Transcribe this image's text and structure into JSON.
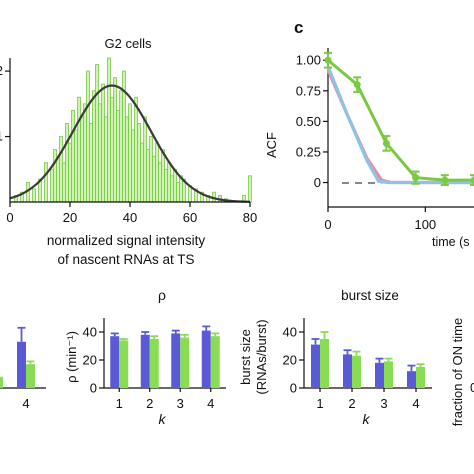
{
  "colors": {
    "green_fill": "#a8e87a",
    "green_line": "#7ac943",
    "green_bar": "#88dd55",
    "blue_bar": "#5a5ad6",
    "pink_curve": "#e98aa6",
    "blue_curve": "#8ec3e6",
    "axis": "#111111",
    "fit_curve": "#3a3a3a"
  },
  "chart_data": [
    {
      "id": "histogram",
      "type": "bar",
      "title": "G2 cells",
      "xlabel": [
        "normalized signal intensity",
        "of nascent RNAs at TS"
      ],
      "xticks": [
        "0",
        "20",
        "40",
        "60",
        "80"
      ],
      "xlim": [
        0,
        80
      ],
      "ylim": [
        0,
        2.2
      ],
      "yticks": [
        "1",
        "2"
      ],
      "bins_x": [
        2,
        4,
        6,
        8,
        10,
        12,
        14,
        15,
        16,
        17,
        18,
        19,
        20,
        21,
        22,
        23,
        24,
        25,
        26,
        27,
        28,
        29,
        30,
        31,
        32,
        33,
        34,
        35,
        36,
        37,
        38,
        39,
        40,
        41,
        42,
        43,
        44,
        45,
        46,
        47,
        48,
        49,
        50,
        51,
        52,
        53,
        54,
        55,
        56,
        57,
        58,
        60,
        62,
        64,
        66,
        68,
        70,
        72,
        78,
        80
      ],
      "bins_y": [
        0.1,
        0.15,
        0.3,
        0.2,
        0.35,
        0.6,
        0.5,
        0.8,
        0.7,
        1.0,
        0.6,
        1.2,
        0.9,
        1.4,
        1.1,
        1.6,
        1.3,
        1.5,
        2.0,
        1.2,
        1.7,
        2.1,
        1.5,
        1.8,
        1.3,
        2.2,
        1.6,
        1.9,
        1.4,
        1.7,
        2.0,
        1.3,
        1.5,
        1.1,
        1.6,
        1.2,
        0.9,
        1.3,
        0.8,
        1.0,
        0.7,
        0.9,
        0.6,
        0.8,
        0.5,
        0.6,
        0.4,
        0.5,
        0.3,
        0.4,
        0.35,
        0.25,
        0.2,
        0.15,
        0.1,
        0.15,
        0.1,
        0.05,
        0.1,
        0.4
      ],
      "fit": {
        "mean": 34,
        "sd": 13,
        "peak": 1.78
      }
    },
    {
      "id": "acf",
      "type": "line",
      "panel_label": "c",
      "ylabel": "ACF",
      "xlabel": "time (s",
      "xticks": [
        "0",
        "100"
      ],
      "yticks": [
        "1.00",
        "0.75",
        "0.50",
        "0.25",
        "0"
      ],
      "xlim": [
        0,
        195
      ],
      "ylim": [
        -0.2,
        1.1
      ],
      "series": [
        {
          "color": "green",
          "x": [
            0,
            30,
            60,
            90,
            120,
            150,
            180
          ],
          "y": [
            1.0,
            0.8,
            0.32,
            0.04,
            0.02,
            0.02,
            0.03
          ],
          "err": [
            0.06,
            0.06,
            0.06,
            0.05,
            0.04,
            0.04,
            0.05
          ]
        },
        {
          "color": "pink",
          "x": [
            0,
            20,
            40,
            55,
            65,
            75,
            195
          ],
          "y": [
            0.92,
            0.55,
            0.2,
            0.02,
            0.0,
            0.0,
            0.0
          ]
        },
        {
          "color": "blue",
          "x": [
            0,
            20,
            40,
            52,
            62,
            72,
            195
          ],
          "y": [
            0.95,
            0.55,
            0.18,
            0.01,
            0.0,
            0.0,
            0.0
          ]
        }
      ]
    },
    {
      "id": "partial-left",
      "type": "bar",
      "categories": [
        "",
        "",
        "",
        "4"
      ],
      "series": [
        {
          "color": "blue",
          "values": [
            null,
            null,
            null,
            33
          ],
          "err": [
            null,
            null,
            null,
            10
          ]
        },
        {
          "color": "green",
          "values": [
            null,
            null,
            null,
            17
          ],
          "err": [
            null,
            null,
            null,
            2
          ]
        }
      ],
      "ylim": [
        0,
        50
      ]
    },
    {
      "id": "rho",
      "type": "bar",
      "title": "ρ",
      "ylabel": "ρ (min⁻¹)",
      "xlabel": "k",
      "categories": [
        "1",
        "2",
        "3",
        "4"
      ],
      "yticks": [
        "40",
        "20",
        "0"
      ],
      "ylim": [
        0,
        50
      ],
      "series": [
        {
          "color": "blue",
          "values": [
            37,
            38,
            39,
            41
          ],
          "err": [
            2,
            2,
            2,
            3
          ]
        },
        {
          "color": "green",
          "values": [
            34,
            35,
            36,
            37
          ],
          "err": [
            1,
            2,
            2,
            2
          ]
        }
      ]
    },
    {
      "id": "burst-size",
      "type": "bar",
      "title": "burst size",
      "ylabel": [
        "burst size",
        "(RNAs/burst)"
      ],
      "xlabel": "k",
      "categories": [
        "1",
        "2",
        "3",
        "4"
      ],
      "yticks": [
        "40",
        "20",
        "0"
      ],
      "ylim": [
        0,
        50
      ],
      "series": [
        {
          "color": "blue",
          "values": [
            31,
            24,
            18,
            12
          ],
          "err": [
            4,
            3,
            3,
            4
          ]
        },
        {
          "color": "green",
          "values": [
            35,
            23,
            19,
            15
          ],
          "err": [
            5,
            3,
            2,
            2
          ]
        }
      ]
    },
    {
      "id": "fraction-on",
      "type": "bar",
      "ylabel": "fraction of ON time",
      "yticks_partial": [
        "0"
      ]
    }
  ]
}
